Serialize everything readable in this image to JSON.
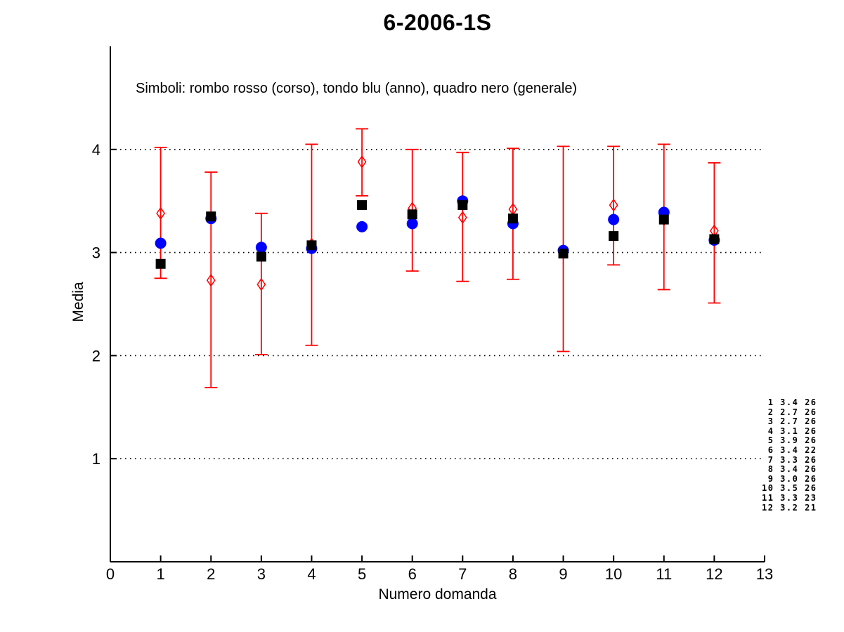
{
  "figure": {
    "title": "6-2006-1S",
    "subtitle": "Simboli: rombo rosso (corso), tondo blu (anno), quadro nero (generale)",
    "xlabel": "Numero domanda",
    "ylabel": "Media"
  },
  "colors": {
    "corso": "#ff0000",
    "anno": "#0000ff",
    "generale": "#000000",
    "axis": "#000000",
    "grid": "#000000",
    "background": "#ffffff"
  },
  "chart_data": {
    "type": "scatter",
    "title": "6-2006-1S",
    "xlabel": "Numero domanda",
    "ylabel": "Media",
    "xlim": [
      0,
      13
    ],
    "ylim": [
      0,
      5
    ],
    "xticks": [
      0,
      1,
      2,
      3,
      4,
      5,
      6,
      7,
      8,
      9,
      10,
      11,
      12,
      13
    ],
    "yticks": [
      1,
      2,
      3,
      4
    ],
    "grid": "horizontal-dotted",
    "legend_note": "Simboli: rombo rosso (corso), tondo blu (anno), quadro nero (generale)",
    "x": [
      1,
      2,
      3,
      4,
      5,
      6,
      7,
      8,
      9,
      10,
      11,
      12
    ],
    "series": [
      {
        "name": "corso",
        "marker": "open-diamond",
        "color": "#ff0000",
        "values": [
          3.38,
          2.73,
          2.69,
          3.08,
          3.88,
          3.43,
          3.34,
          3.42,
          3.01,
          3.46,
          3.32,
          3.21
        ],
        "err_high": [
          4.02,
          3.78,
          3.38,
          4.05,
          4.2,
          4.0,
          3.97,
          4.01,
          4.03,
          4.03,
          4.05,
          3.87
        ],
        "err_low": [
          2.75,
          1.69,
          2.01,
          2.1,
          3.55,
          2.82,
          2.72,
          2.74,
          2.04,
          2.88,
          2.64,
          2.51
        ]
      },
      {
        "name": "anno",
        "marker": "filled-circle",
        "color": "#0000ff",
        "values": [
          3.09,
          3.33,
          3.05,
          3.04,
          3.25,
          3.28,
          3.5,
          3.28,
          3.02,
          3.32,
          3.39,
          3.12
        ]
      },
      {
        "name": "generale",
        "marker": "filled-square",
        "color": "#000000",
        "values": [
          2.89,
          3.35,
          2.96,
          3.07,
          3.46,
          3.37,
          3.46,
          3.33,
          2.99,
          3.16,
          3.32,
          3.13
        ]
      }
    ]
  },
  "stats_table": {
    "rows": [
      [
        1,
        "3.4",
        "26"
      ],
      [
        2,
        "2.7",
        "26"
      ],
      [
        3,
        "2.7",
        "26"
      ],
      [
        4,
        "3.1",
        "26"
      ],
      [
        5,
        "3.9",
        "26"
      ],
      [
        6,
        "3.4",
        "22"
      ],
      [
        7,
        "3.3",
        "26"
      ],
      [
        8,
        "3.4",
        "26"
      ],
      [
        9,
        "3.0",
        "26"
      ],
      [
        10,
        "3.5",
        "26"
      ],
      [
        11,
        "3.3",
        "23"
      ],
      [
        12,
        "3.2",
        "21"
      ]
    ]
  }
}
